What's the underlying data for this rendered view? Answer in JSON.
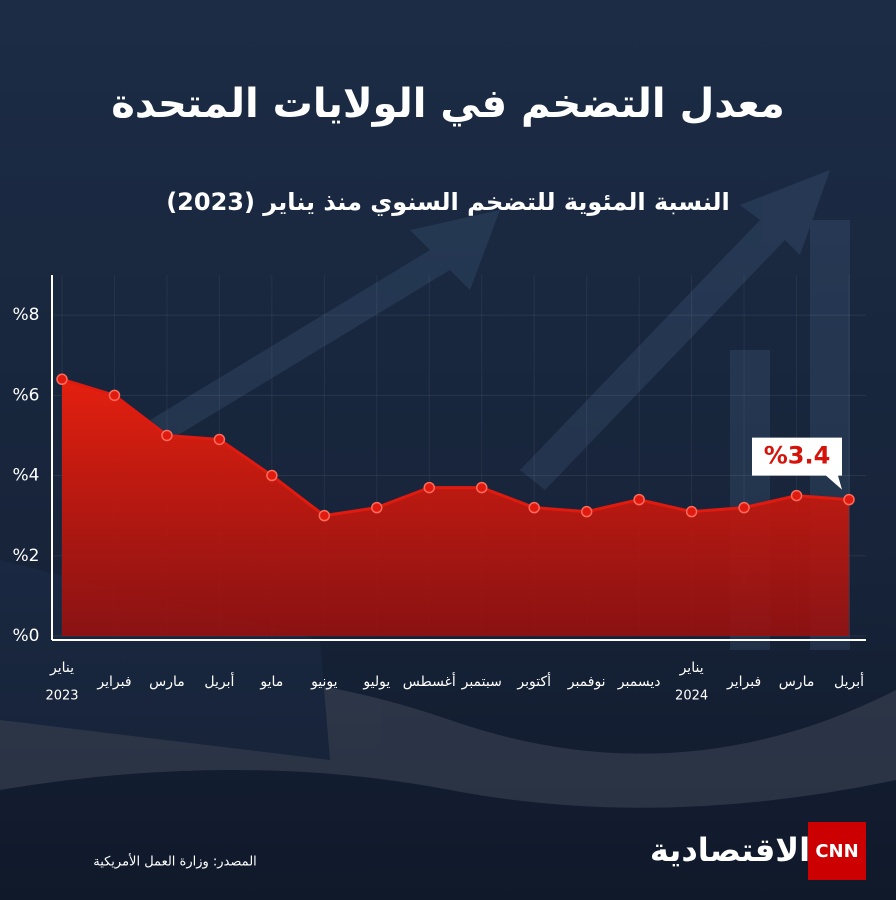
{
  "chart_data": {
    "type": "area",
    "title": "معدل التضخم في الولايات المتحدة",
    "subtitle": "النسبة المئوية للتضخم السنوي منذ يناير (2023)",
    "categories": [
      "يناير",
      "فبراير",
      "مارس",
      "أبريل",
      "مايو",
      "يونيو",
      "يوليو",
      "أغسطس",
      "سبتمبر",
      "أكتوبر",
      "نوفمبر",
      "ديسمبر",
      "يناير",
      "فبراير",
      "مارس",
      "أبريل"
    ],
    "category_years": [
      "2023",
      null,
      null,
      null,
      null,
      null,
      null,
      null,
      null,
      null,
      null,
      null,
      "2024",
      null,
      null,
      null
    ],
    "values": [
      6.4,
      6.0,
      5.0,
      4.9,
      4.0,
      3.0,
      3.2,
      3.7,
      3.7,
      3.2,
      3.1,
      3.4,
      3.1,
      3.2,
      3.5,
      3.4
    ],
    "value_labels": [
      null,
      null,
      null,
      null,
      null,
      null,
      null,
      null,
      null,
      null,
      null,
      null,
      null,
      null,
      null,
      "%3.4"
    ],
    "color": "#e01a0f",
    "ylim": [
      0,
      9
    ],
    "yticks": [
      {
        "value": 0,
        "label": "%0"
      },
      {
        "value": 2,
        "label": "%2"
      },
      {
        "value": 4,
        "label": "%4"
      },
      {
        "value": 6,
        "label": "%6"
      },
      {
        "value": 8,
        "label": "%8"
      }
    ],
    "grid": true,
    "source": "المصدر: وزارة العمل الأمريكية",
    "logos": [
      "CNN",
      "الاقتصادية"
    ]
  }
}
